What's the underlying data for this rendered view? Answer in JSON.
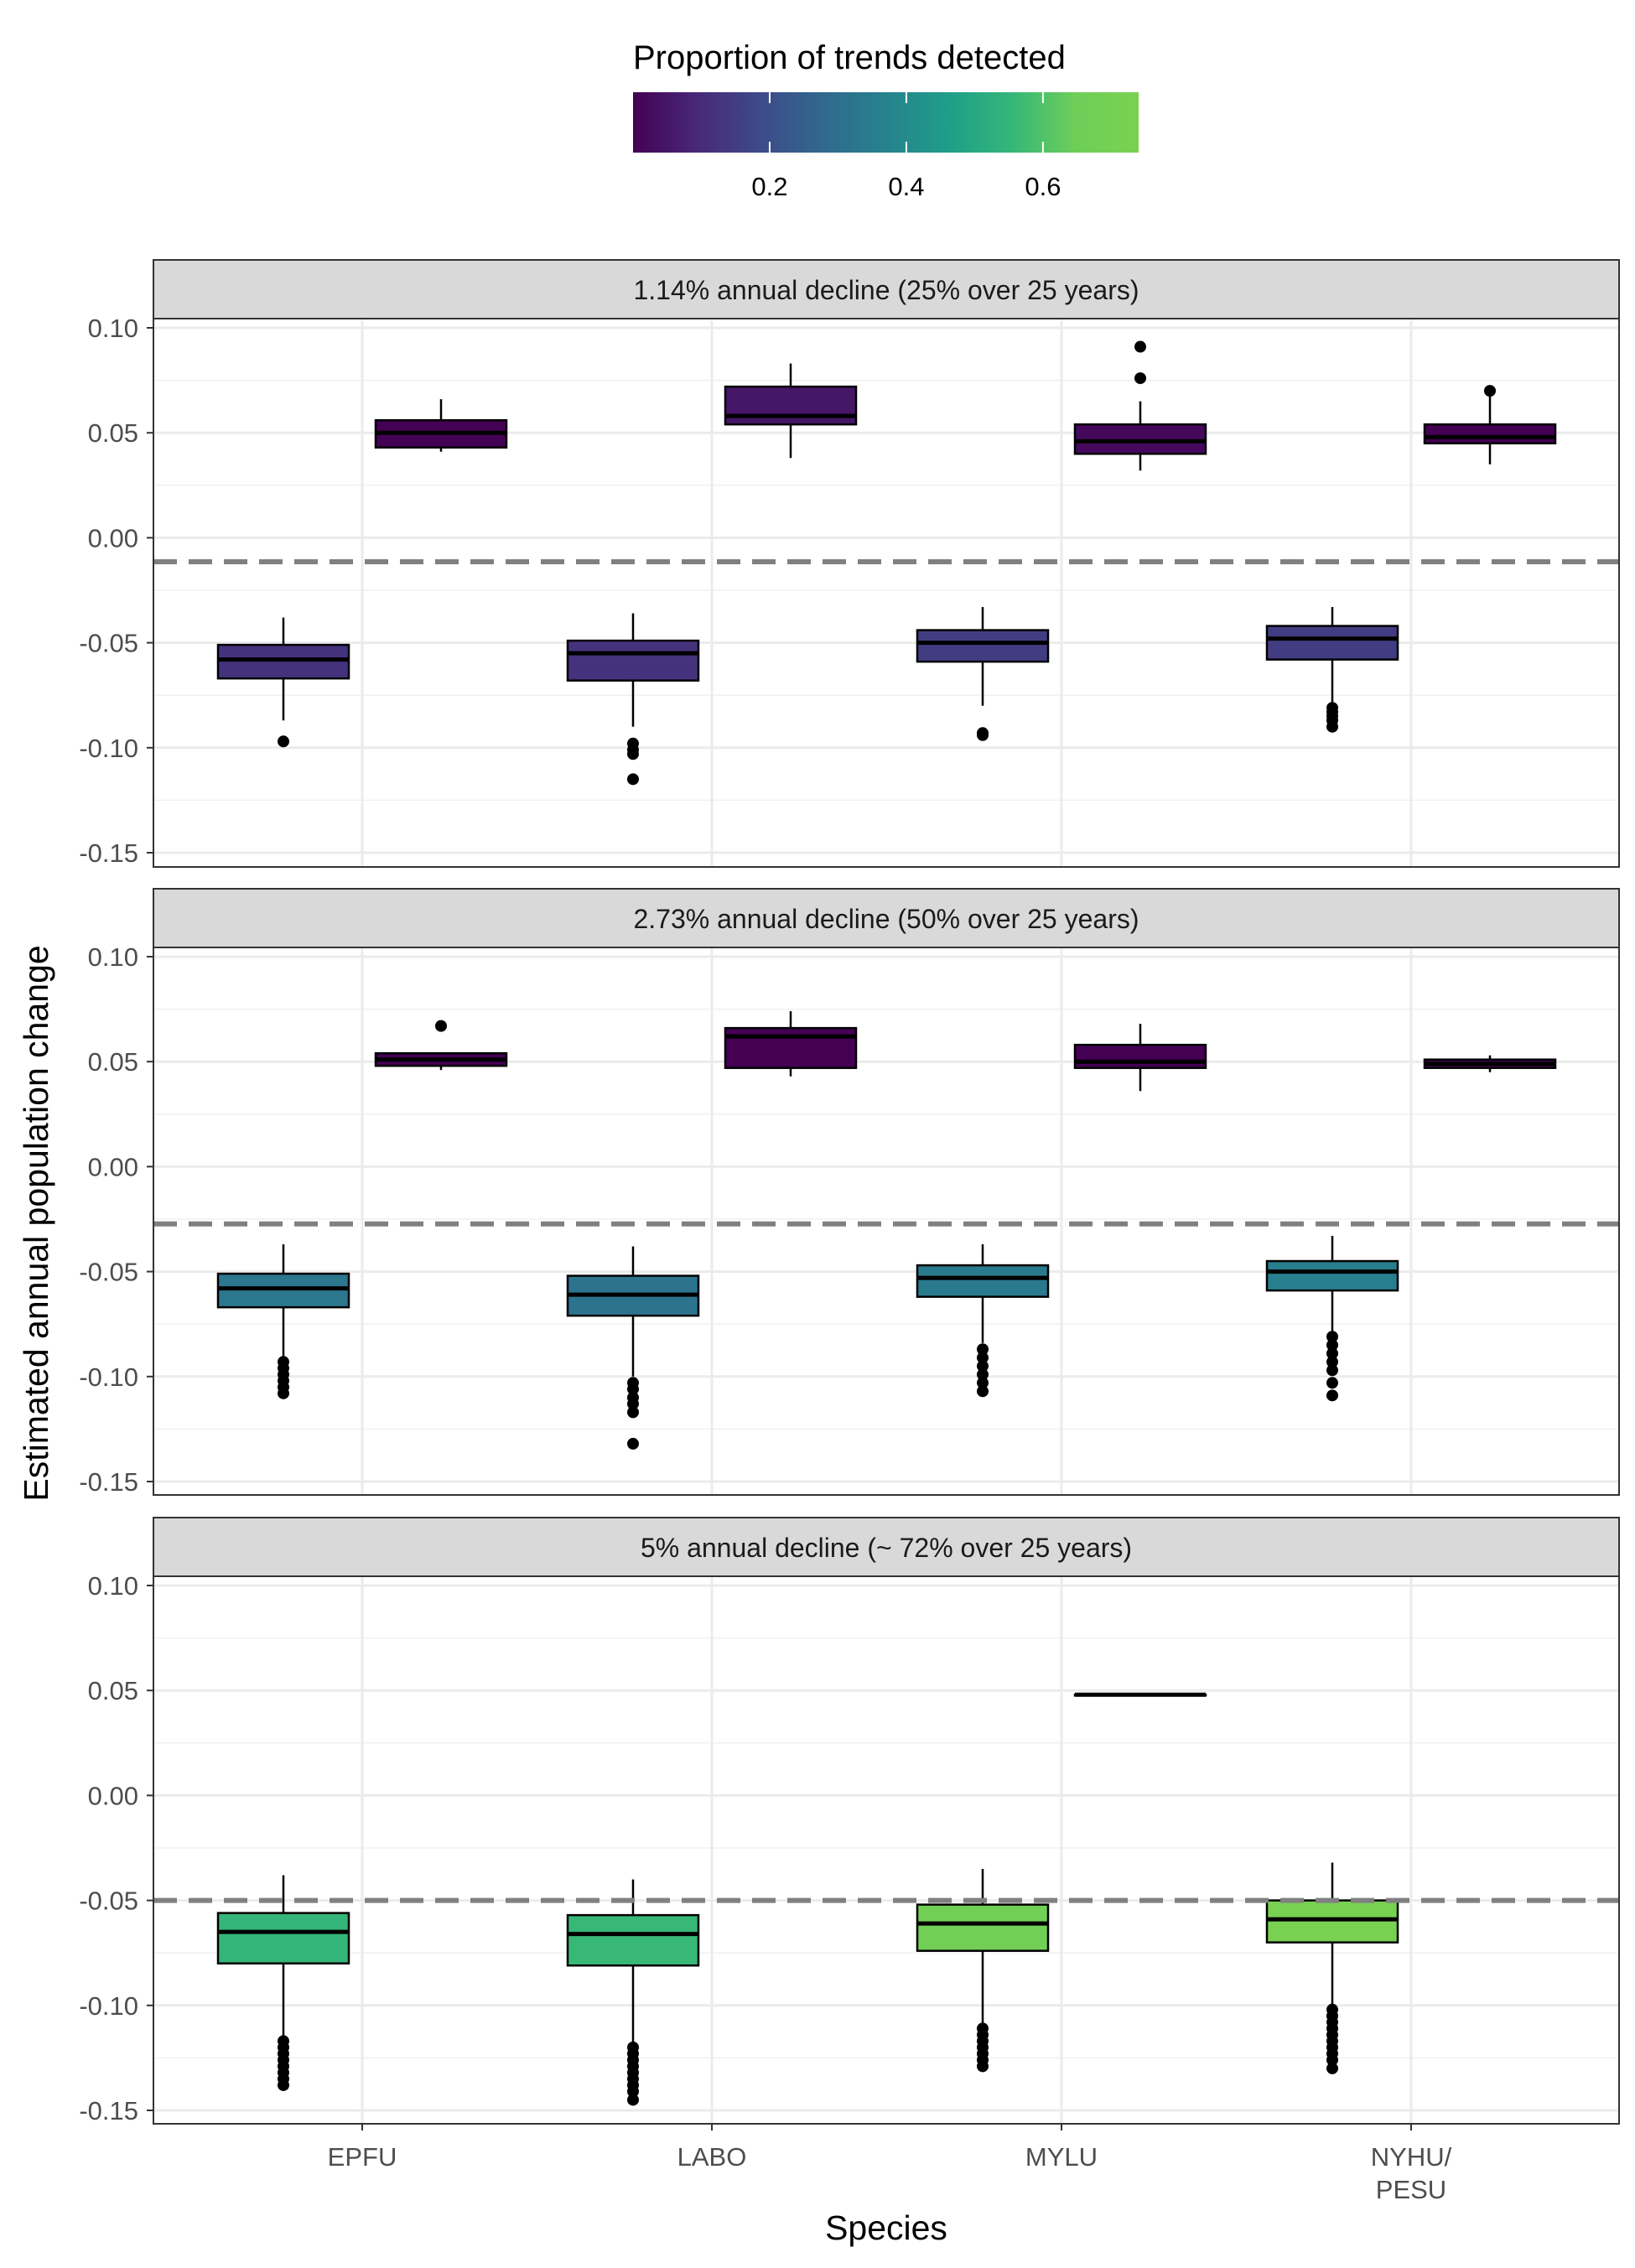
{
  "chart_data": {
    "type": "boxplot",
    "xlabel": "Species",
    "ylabel": "Estimated annual population change",
    "ylim": [
      -0.155,
      0.105
    ],
    "yticks": [
      "0.10",
      "0.05",
      "0.00",
      "-0.05",
      "-0.10",
      "-0.15"
    ],
    "ytick_values": [
      0.1,
      0.05,
      0.0,
      -0.05,
      -0.1,
      -0.15
    ],
    "categories": [
      "EPFU",
      "LABO",
      "MYLU",
      "NYHU/\nPESU"
    ],
    "grid": true,
    "legend": {
      "title": "Proportion of trends detected",
      "placement": "top",
      "range": [
        0.0,
        0.74
      ],
      "ticks": [
        "0.2",
        "0.4",
        "0.6"
      ],
      "tick_values": [
        0.2,
        0.4,
        0.6
      ],
      "palette": [
        "#440154",
        "#482878",
        "#3e4a89",
        "#31688e",
        "#26828e",
        "#1f9e89",
        "#35b779",
        "#6ece58",
        "#7ad151"
      ]
    },
    "panels": [
      {
        "title": "1.14% annual decline (25% over 25 years)",
        "reference_line": -0.0114,
        "boxes": [
          {
            "category": "EPFU",
            "group": "positive",
            "proportion": 0.0,
            "q1": 0.043,
            "median": 0.05,
            "q3": 0.056,
            "whisker_low": 0.041,
            "whisker_high": 0.066,
            "outliers": []
          },
          {
            "category": "LABO",
            "group": "positive",
            "proportion": 0.05,
            "q1": 0.054,
            "median": 0.058,
            "q3": 0.072,
            "whisker_low": 0.038,
            "whisker_high": 0.083,
            "outliers": []
          },
          {
            "category": "MYLU",
            "group": "positive",
            "proportion": 0.02,
            "q1": 0.04,
            "median": 0.046,
            "q3": 0.054,
            "whisker_low": 0.032,
            "whisker_high": 0.065,
            "outliers": [
              0.076,
              0.091
            ]
          },
          {
            "category": "NYHU/\nPESU",
            "group": "positive",
            "proportion": 0.0,
            "q1": 0.045,
            "median": 0.048,
            "q3": 0.054,
            "whisker_low": 0.035,
            "whisker_high": 0.07,
            "outliers": [
              0.07
            ]
          },
          {
            "category": "EPFU",
            "group": "negative",
            "proportion": 0.12,
            "q1": -0.067,
            "median": -0.058,
            "q3": -0.051,
            "whisker_low": -0.087,
            "whisker_high": -0.038,
            "outliers": [
              -0.097
            ]
          },
          {
            "category": "LABO",
            "group": "negative",
            "proportion": 0.12,
            "q1": -0.068,
            "median": -0.055,
            "q3": -0.049,
            "whisker_low": -0.09,
            "whisker_high": -0.036,
            "outliers": [
              -0.098,
              -0.101,
              -0.103,
              -0.115
            ]
          },
          {
            "category": "MYLU",
            "group": "negative",
            "proportion": 0.15,
            "q1": -0.059,
            "median": -0.05,
            "q3": -0.044,
            "whisker_low": -0.08,
            "whisker_high": -0.033,
            "outliers": [
              -0.093,
              -0.094
            ]
          },
          {
            "category": "NYHU/\nPESU",
            "group": "negative",
            "proportion": 0.15,
            "q1": -0.058,
            "median": -0.048,
            "q3": -0.042,
            "whisker_low": -0.079,
            "whisker_high": -0.033,
            "outliers": [
              -0.081,
              -0.083,
              -0.085,
              -0.087,
              -0.09
            ]
          }
        ]
      },
      {
        "title": "2.73% annual decline (50% over 25 years)",
        "reference_line": -0.0273,
        "boxes": [
          {
            "category": "EPFU",
            "group": "positive",
            "proportion": 0.0,
            "q1": 0.048,
            "median": 0.051,
            "q3": 0.054,
            "whisker_low": 0.046,
            "whisker_high": 0.054,
            "outliers": [
              0.067
            ]
          },
          {
            "category": "LABO",
            "group": "positive",
            "proportion": 0.0,
            "q1": 0.047,
            "median": 0.062,
            "q3": 0.066,
            "whisker_low": 0.043,
            "whisker_high": 0.074,
            "outliers": []
          },
          {
            "category": "MYLU",
            "group": "positive",
            "proportion": 0.0,
            "q1": 0.047,
            "median": 0.05,
            "q3": 0.058,
            "whisker_low": 0.036,
            "whisker_high": 0.068,
            "outliers": []
          },
          {
            "category": "NYHU/\nPESU",
            "group": "positive",
            "proportion": 0.0,
            "q1": 0.047,
            "median": 0.049,
            "q3": 0.051,
            "whisker_low": 0.045,
            "whisker_high": 0.053,
            "outliers": []
          },
          {
            "category": "EPFU",
            "group": "negative",
            "proportion": 0.33,
            "q1": -0.067,
            "median": -0.058,
            "q3": -0.051,
            "whisker_low": -0.091,
            "whisker_high": -0.037,
            "outliers": [
              -0.093,
              -0.096,
              -0.099,
              -0.102,
              -0.105,
              -0.108
            ]
          },
          {
            "category": "LABO",
            "group": "negative",
            "proportion": 0.32,
            "q1": -0.071,
            "median": -0.061,
            "q3": -0.052,
            "whisker_low": -0.1,
            "whisker_high": -0.038,
            "outliers": [
              -0.103,
              -0.106,
              -0.11,
              -0.113,
              -0.117,
              -0.132
            ]
          },
          {
            "category": "MYLU",
            "group": "negative",
            "proportion": 0.34,
            "q1": -0.062,
            "median": -0.053,
            "q3": -0.047,
            "whisker_low": -0.084,
            "whisker_high": -0.037,
            "outliers": [
              -0.087,
              -0.091,
              -0.095,
              -0.099,
              -0.103,
              -0.107
            ]
          },
          {
            "category": "NYHU/\nPESU",
            "group": "negative",
            "proportion": 0.36,
            "q1": -0.059,
            "median": -0.05,
            "q3": -0.045,
            "whisker_low": -0.079,
            "whisker_high": -0.033,
            "outliers": [
              -0.081,
              -0.085,
              -0.089,
              -0.093,
              -0.097,
              -0.103,
              -0.109
            ]
          }
        ]
      },
      {
        "title": "5% annual decline (~ 72% over 25 years)",
        "reference_line": -0.05,
        "boxes": [
          {
            "category": "MYLU",
            "group": "positive",
            "proportion": 0.0,
            "q1": 0.048,
            "median": 0.048,
            "q3": 0.048,
            "whisker_low": 0.048,
            "whisker_high": 0.048,
            "outliers": []
          },
          {
            "category": "EPFU",
            "group": "negative",
            "proportion": 0.55,
            "q1": -0.08,
            "median": -0.065,
            "q3": -0.056,
            "whisker_low": -0.115,
            "whisker_high": -0.038,
            "outliers": [
              -0.117,
              -0.12,
              -0.123,
              -0.126,
              -0.129,
              -0.132,
              -0.135,
              -0.138
            ]
          },
          {
            "category": "LABO",
            "group": "negative",
            "proportion": 0.56,
            "q1": -0.081,
            "median": -0.066,
            "q3": -0.057,
            "whisker_low": -0.118,
            "whisker_high": -0.04,
            "outliers": [
              -0.12,
              -0.123,
              -0.126,
              -0.129,
              -0.132,
              -0.135,
              -0.138,
              -0.141,
              -0.145
            ]
          },
          {
            "category": "MYLU",
            "group": "negative",
            "proportion": 0.67,
            "q1": -0.074,
            "median": -0.061,
            "q3": -0.052,
            "whisker_low": -0.109,
            "whisker_high": -0.035,
            "outliers": [
              -0.111,
              -0.114,
              -0.117,
              -0.12,
              -0.123,
              -0.126,
              -0.129
            ]
          },
          {
            "category": "NYHU/\nPESU",
            "group": "negative",
            "proportion": 0.73,
            "q1": -0.07,
            "median": -0.059,
            "q3": -0.05,
            "whisker_low": -0.1,
            "whisker_high": -0.032,
            "outliers": [
              -0.102,
              -0.105,
              -0.108,
              -0.111,
              -0.114,
              -0.117,
              -0.12,
              -0.123,
              -0.126,
              -0.13
            ]
          }
        ]
      }
    ]
  }
}
